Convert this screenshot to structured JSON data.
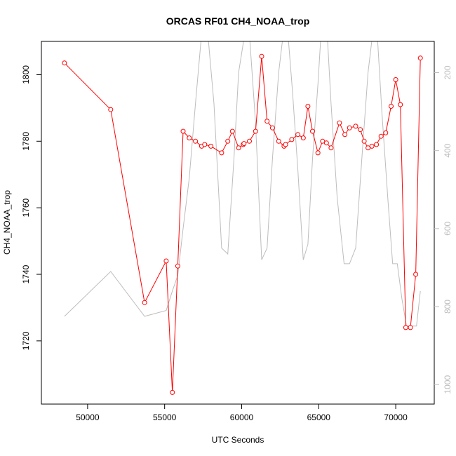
{
  "chart_data": {
    "type": "line",
    "title": "ORCAS RF01 CH4_NOAA_trop",
    "xlabel": "UTC Seconds",
    "ylabel": "CH4_NOAA_trop",
    "xlim": [
      47000,
      72500
    ],
    "ylim": [
      1701,
      1810
    ],
    "x_ticks": [
      50000,
      55000,
      60000,
      65000,
      70000
    ],
    "y_ticks": [
      1720,
      1740,
      1760,
      1780,
      1800
    ],
    "secondary_axis": {
      "side": "right",
      "reversed": true,
      "ylim": [
        1050,
        120
      ],
      "ticks": [
        200,
        400,
        600,
        800,
        1000
      ],
      "color": "#bdbdbd"
    },
    "colors": {
      "ch4": "#ff0000",
      "secondary": "#bdbdbd",
      "axis": "#000000"
    },
    "series": [
      {
        "values": [
          [
            48500,
            1803.5
          ],
          [
            51500,
            1789.5
          ],
          [
            53700,
            1731.5
          ],
          [
            55100,
            1744.0
          ],
          [
            55500,
            1704.5
          ],
          [
            55850,
            1742.5
          ],
          [
            56200,
            1783.0
          ],
          [
            56600,
            1781.0
          ],
          [
            57000,
            1780.0
          ],
          [
            57400,
            1778.5
          ],
          [
            57600,
            1779.0
          ],
          [
            58000,
            1778.5
          ],
          [
            58700,
            1776.5
          ],
          [
            59100,
            1780.0
          ],
          [
            59400,
            1783.0
          ],
          [
            59800,
            1778.0
          ],
          [
            60100,
            1779.0
          ],
          [
            60150,
            1779.3
          ],
          [
            60500,
            1780.0
          ],
          [
            60900,
            1783.0
          ],
          [
            61300,
            1805.5
          ],
          [
            61650,
            1786.0
          ],
          [
            62000,
            1784.0
          ],
          [
            62400,
            1780.0
          ],
          [
            62750,
            1778.5
          ],
          [
            62850,
            1779.0
          ],
          [
            63250,
            1780.5
          ],
          [
            63650,
            1782.0
          ],
          [
            64000,
            1781.0
          ],
          [
            64300,
            1790.5
          ],
          [
            64600,
            1783.0
          ],
          [
            64950,
            1776.5
          ],
          [
            65250,
            1780.0
          ],
          [
            65500,
            1779.5
          ],
          [
            65800,
            1778.0
          ],
          [
            66350,
            1785.5
          ],
          [
            66700,
            1782.0
          ],
          [
            67000,
            1784.0
          ],
          [
            67400,
            1784.5
          ],
          [
            67700,
            1783.5
          ],
          [
            67950,
            1780.0
          ],
          [
            68200,
            1778.0
          ],
          [
            68450,
            1778.5
          ],
          [
            68750,
            1779.0
          ],
          [
            69050,
            1781.5
          ],
          [
            69350,
            1782.5
          ],
          [
            69700,
            1790.5
          ],
          [
            70000,
            1798.5
          ],
          [
            70300,
            1791.0
          ],
          [
            70650,
            1724.0
          ],
          [
            70950,
            1724.0
          ],
          [
            71300,
            1740.0
          ],
          [
            71600,
            1805.0
          ]
        ]
      },
      {
        "axis": "secondary",
        "values": [
          [
            48500,
            825
          ],
          [
            51500,
            710
          ],
          [
            53700,
            825
          ],
          [
            55100,
            810
          ],
          [
            55500,
            760
          ],
          [
            55850,
            720
          ],
          [
            56200,
            600
          ],
          [
            56600,
            470
          ],
          [
            57000,
            280
          ],
          [
            57400,
            100
          ],
          [
            57800,
            100
          ],
          [
            58200,
            280
          ],
          [
            58700,
            650
          ],
          [
            59100,
            665
          ],
          [
            59500,
            420
          ],
          [
            59800,
            200
          ],
          [
            60200,
            100
          ],
          [
            60500,
            100
          ],
          [
            60900,
            330
          ],
          [
            61300,
            680
          ],
          [
            61650,
            650
          ],
          [
            62000,
            420
          ],
          [
            62400,
            200
          ],
          [
            62700,
            100
          ],
          [
            63000,
            100
          ],
          [
            63300,
            250
          ],
          [
            63650,
            450
          ],
          [
            64000,
            680
          ],
          [
            64300,
            640
          ],
          [
            64600,
            420
          ],
          [
            64950,
            230
          ],
          [
            65150,
            100
          ],
          [
            65550,
            100
          ],
          [
            65800,
            280
          ],
          [
            66200,
            520
          ],
          [
            66650,
            690
          ],
          [
            67000,
            690
          ],
          [
            67400,
            650
          ],
          [
            67800,
            420
          ],
          [
            68200,
            200
          ],
          [
            68500,
            100
          ],
          [
            68800,
            100
          ],
          [
            69100,
            300
          ],
          [
            69500,
            530
          ],
          [
            69800,
            690
          ],
          [
            70100,
            690
          ],
          [
            70400,
            780
          ],
          [
            70700,
            850
          ],
          [
            71050,
            850
          ],
          [
            71350,
            850
          ],
          [
            71600,
            760
          ]
        ]
      }
    ]
  }
}
